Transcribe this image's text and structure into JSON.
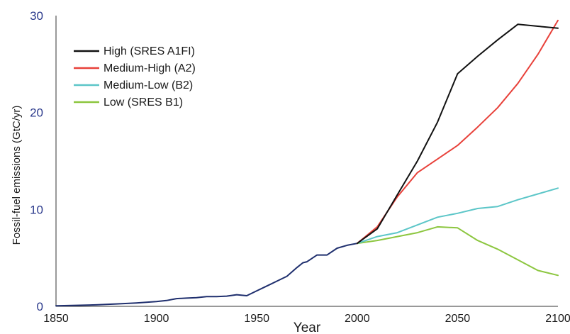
{
  "chart_data": {
    "type": "line",
    "title": "",
    "xlabel": "Year",
    "ylabel": "Fossil-fuel emissions (GtC/yr)",
    "xlim": [
      1850,
      2100
    ],
    "ylim": [
      0,
      30
    ],
    "xticks": [
      1850,
      1900,
      1950,
      2000,
      2050,
      2100
    ],
    "yticks": [
      0,
      10,
      20,
      30
    ],
    "grid": false,
    "legend_position": "top-left",
    "historical": {
      "name": "",
      "color": "#1f2f6e",
      "x": [
        1850,
        1860,
        1870,
        1880,
        1890,
        1900,
        1905,
        1910,
        1915,
        1920,
        1925,
        1930,
        1935,
        1940,
        1945,
        1950,
        1955,
        1960,
        1965,
        1970,
        1973,
        1975,
        1980,
        1985,
        1990,
        1995,
        2000
      ],
      "y": [
        0.05,
        0.1,
        0.15,
        0.25,
        0.35,
        0.5,
        0.6,
        0.8,
        0.85,
        0.9,
        1.0,
        1.0,
        1.05,
        1.2,
        1.1,
        1.6,
        2.1,
        2.6,
        3.1,
        4.0,
        4.5,
        4.6,
        5.3,
        5.3,
        6.0,
        6.3,
        6.5
      ]
    },
    "series": [
      {
        "name": "High (SRES A1FI)",
        "color": "#111111",
        "x": [
          2000,
          2010,
          2020,
          2030,
          2040,
          2050,
          2060,
          2070,
          2080,
          2090,
          2100
        ],
        "y": [
          6.5,
          8.0,
          11.5,
          15.0,
          19.0,
          24.0,
          25.8,
          27.5,
          29.1,
          28.9,
          28.7
        ]
      },
      {
        "name": "Medium-High (A2)",
        "color": "#e8413a",
        "x": [
          2000,
          2010,
          2020,
          2030,
          2040,
          2050,
          2060,
          2070,
          2080,
          2090,
          2100
        ],
        "y": [
          6.5,
          8.2,
          11.3,
          13.8,
          15.2,
          16.6,
          18.5,
          20.5,
          23.0,
          26.0,
          29.5
        ]
      },
      {
        "name": "Medium-Low (B2)",
        "color": "#5cc6c8",
        "x": [
          2000,
          2010,
          2020,
          2030,
          2040,
          2050,
          2060,
          2070,
          2080,
          2090,
          2100
        ],
        "y": [
          6.5,
          7.2,
          7.6,
          8.4,
          9.2,
          9.6,
          10.1,
          10.3,
          11.0,
          11.6,
          12.2
        ]
      },
      {
        "name": "Low (SRES B1)",
        "color": "#8cc63f",
        "x": [
          2000,
          2010,
          2020,
          2030,
          2040,
          2050,
          2060,
          2070,
          2080,
          2090,
          2100
        ],
        "y": [
          6.5,
          6.8,
          7.2,
          7.6,
          8.2,
          8.1,
          6.8,
          5.9,
          4.8,
          3.7,
          3.2
        ]
      }
    ]
  }
}
